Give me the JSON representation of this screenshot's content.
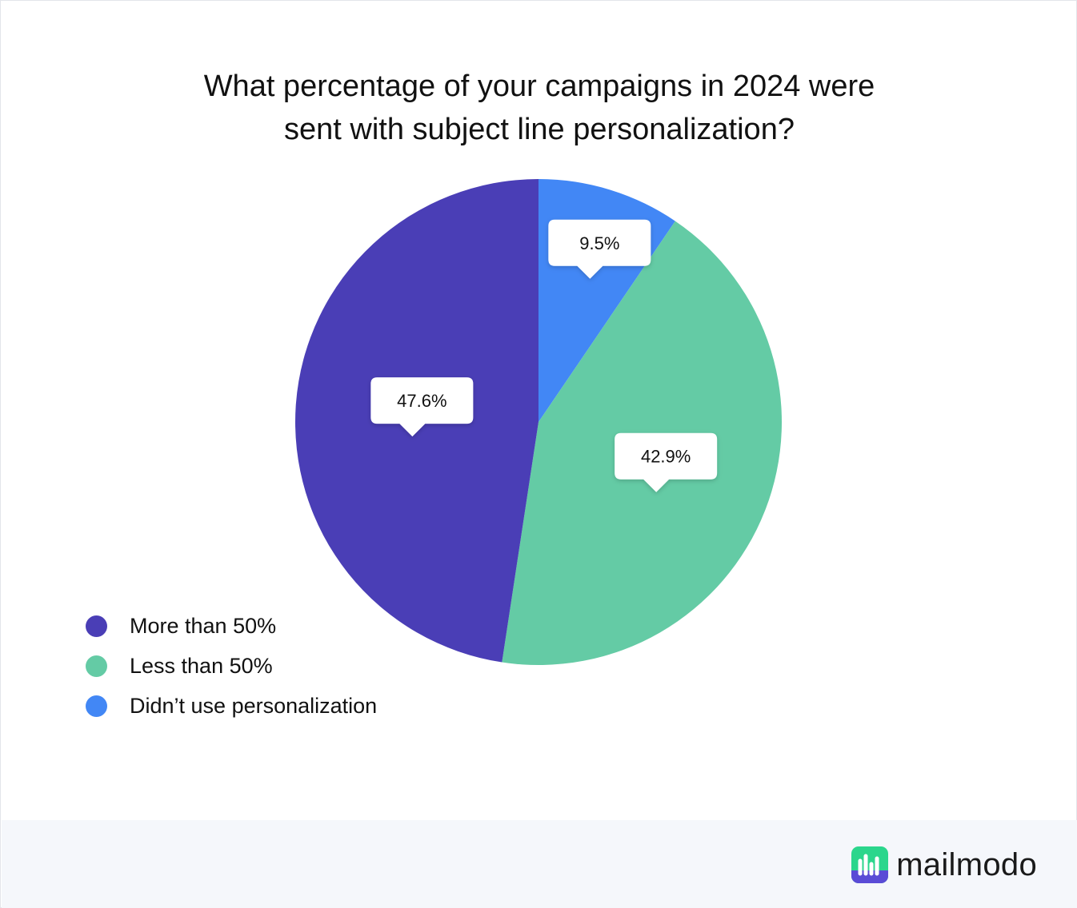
{
  "title_lines": [
    "What percentage of your campaigns in 2024 were",
    "sent with subject line personalization?"
  ],
  "chart_data": {
    "type": "pie",
    "title": "What percentage of your campaigns in 2024 were sent with subject line personalization?",
    "slices": [
      {
        "label": "Didn’t use personalization",
        "value": 9.5,
        "display": "9.5%",
        "color": "#4287f5"
      },
      {
        "label": "Less than 50%",
        "value": 42.9,
        "display": "42.9%",
        "color": "#64cba5"
      },
      {
        "label": "More than 50%",
        "value": 47.6,
        "display": "47.6%",
        "color": "#4a3eb6"
      }
    ],
    "legend_order": [
      "More than 50%",
      "Less than 50%",
      "Didn’t use personalization"
    ],
    "legend_position": "bottom-left"
  },
  "brand": {
    "name": "mailmodo",
    "logo_colors": [
      "#2bd68c",
      "#5a4bd6"
    ]
  }
}
